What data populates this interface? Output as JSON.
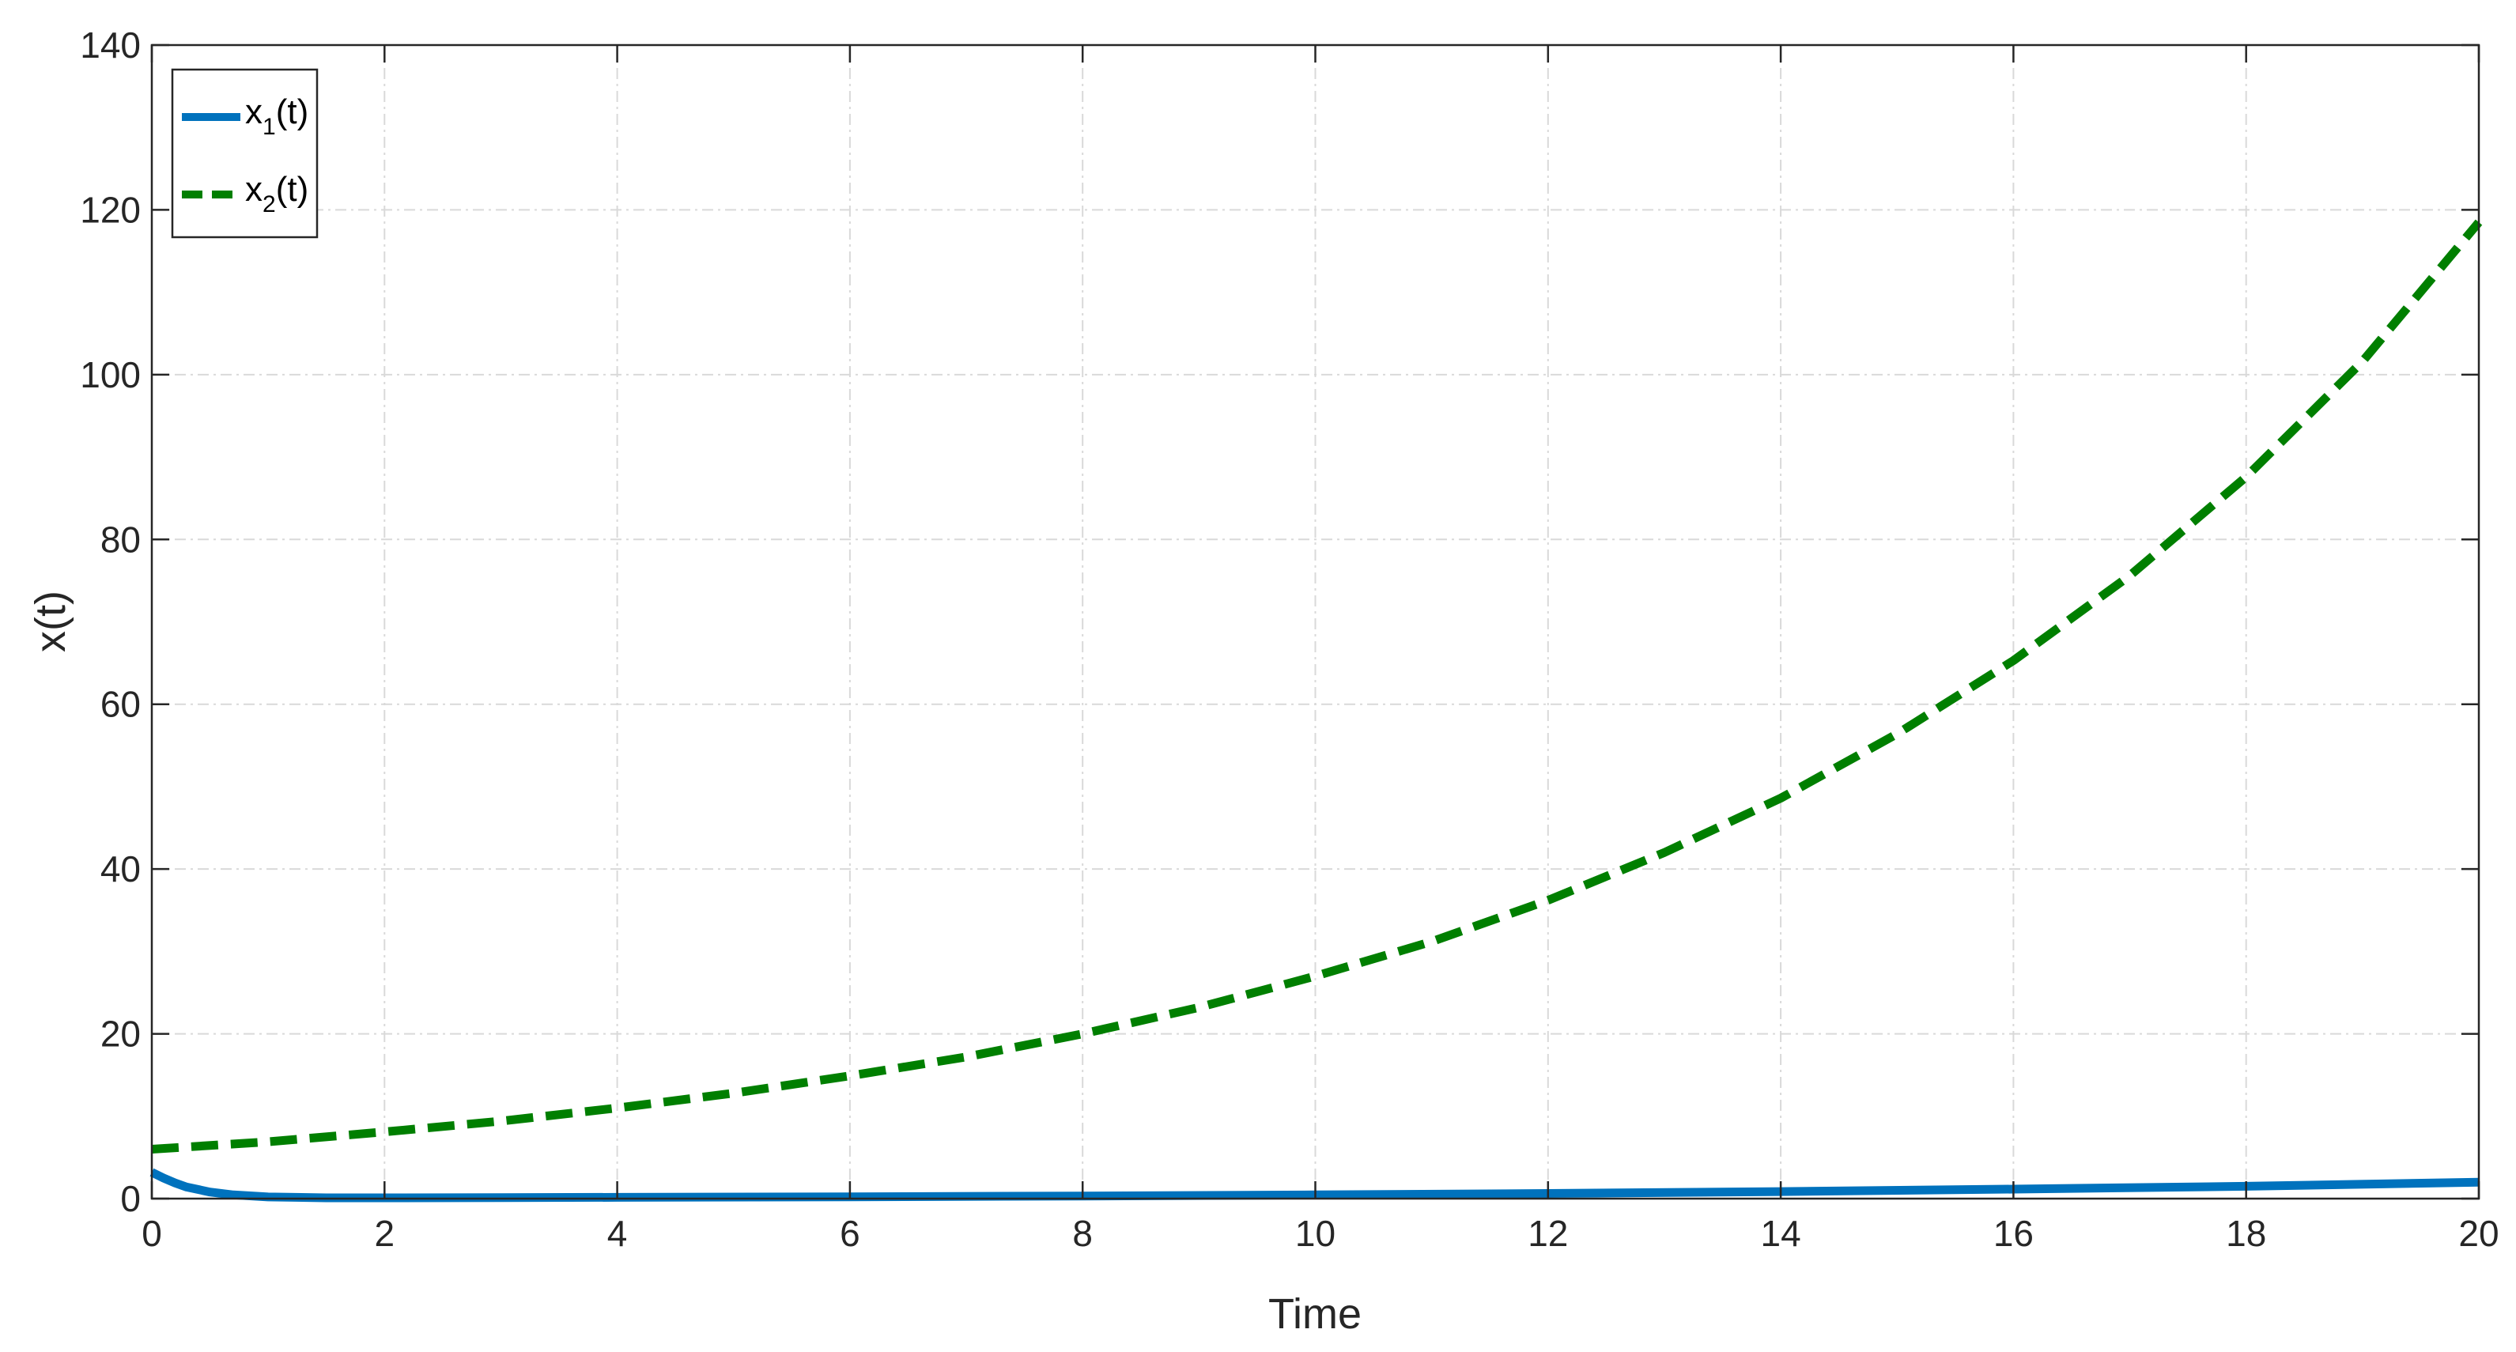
{
  "chart_data": {
    "type": "line",
    "xlabel": "Time",
    "ylabel": "x(t)",
    "xlim": [
      0,
      20
    ],
    "ylim": [
      0,
      140
    ],
    "xticks": [
      0,
      2,
      4,
      6,
      8,
      10,
      12,
      14,
      16,
      18,
      20
    ],
    "yticks": [
      0,
      20,
      40,
      60,
      80,
      100,
      120,
      140
    ],
    "grid": true,
    "legend_position": "top-left",
    "series": [
      {
        "name": "x1(t)",
        "legend_base": "x",
        "legend_sub": "1",
        "legend_suffix": "(t)",
        "color": "#0072BD",
        "style": "solid",
        "x": [
          0,
          0.1,
          0.2,
          0.3,
          0.5,
          0.7,
          1,
          1.5,
          2,
          3,
          4,
          6,
          8,
          10,
          12,
          14,
          16,
          18,
          20
        ],
        "y": [
          3.2,
          2.5,
          1.9,
          1.4,
          0.8,
          0.45,
          0.2,
          0.1,
          0.1,
          0.12,
          0.15,
          0.22,
          0.32,
          0.45,
          0.62,
          0.85,
          1.15,
          1.5,
          2.0
        ]
      },
      {
        "name": "x2(t)",
        "legend_base": "x",
        "legend_sub": "2",
        "legend_suffix": "(t)",
        "color": "#007F00",
        "style": "dashed",
        "x": [
          0,
          1,
          2,
          3,
          4,
          5,
          6,
          7,
          8,
          9,
          10,
          11,
          12,
          13,
          14,
          15,
          16,
          17,
          18,
          19,
          20
        ],
        "y": [
          6.0,
          6.9,
          8.1,
          9.4,
          11.0,
          12.8,
          14.9,
          17.2,
          20.0,
          23.2,
          27.0,
          31.2,
          36.2,
          42.0,
          48.6,
          56.4,
          65.3,
          75.6,
          87.6,
          101.6,
          118.5
        ]
      }
    ]
  }
}
